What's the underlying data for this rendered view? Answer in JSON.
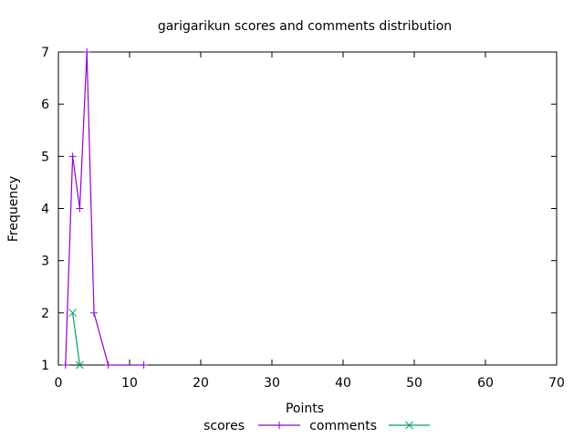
{
  "chart_data": {
    "type": "line",
    "title": "garigarikun scores and comments distribution",
    "xlabel": "Points",
    "ylabel": "Frequency",
    "xlim": [
      0,
      70
    ],
    "ylim": [
      1,
      7
    ],
    "x_ticks": [
      0,
      10,
      20,
      30,
      40,
      50,
      60,
      70
    ],
    "y_ticks": [
      1,
      2,
      3,
      4,
      5,
      6,
      7
    ],
    "grid": false,
    "legend_position": "bottom-center",
    "series": [
      {
        "name": "scores",
        "color": "#9400d3",
        "marker": "plus",
        "x": [
          1,
          2,
          3,
          4,
          5,
          7,
          12
        ],
        "y": [
          1,
          5,
          4,
          7,
          2,
          1,
          1
        ]
      },
      {
        "name": "comments",
        "color": "#009e73",
        "marker": "cross",
        "x": [
          2,
          3
        ],
        "y": [
          2,
          1
        ]
      }
    ]
  }
}
